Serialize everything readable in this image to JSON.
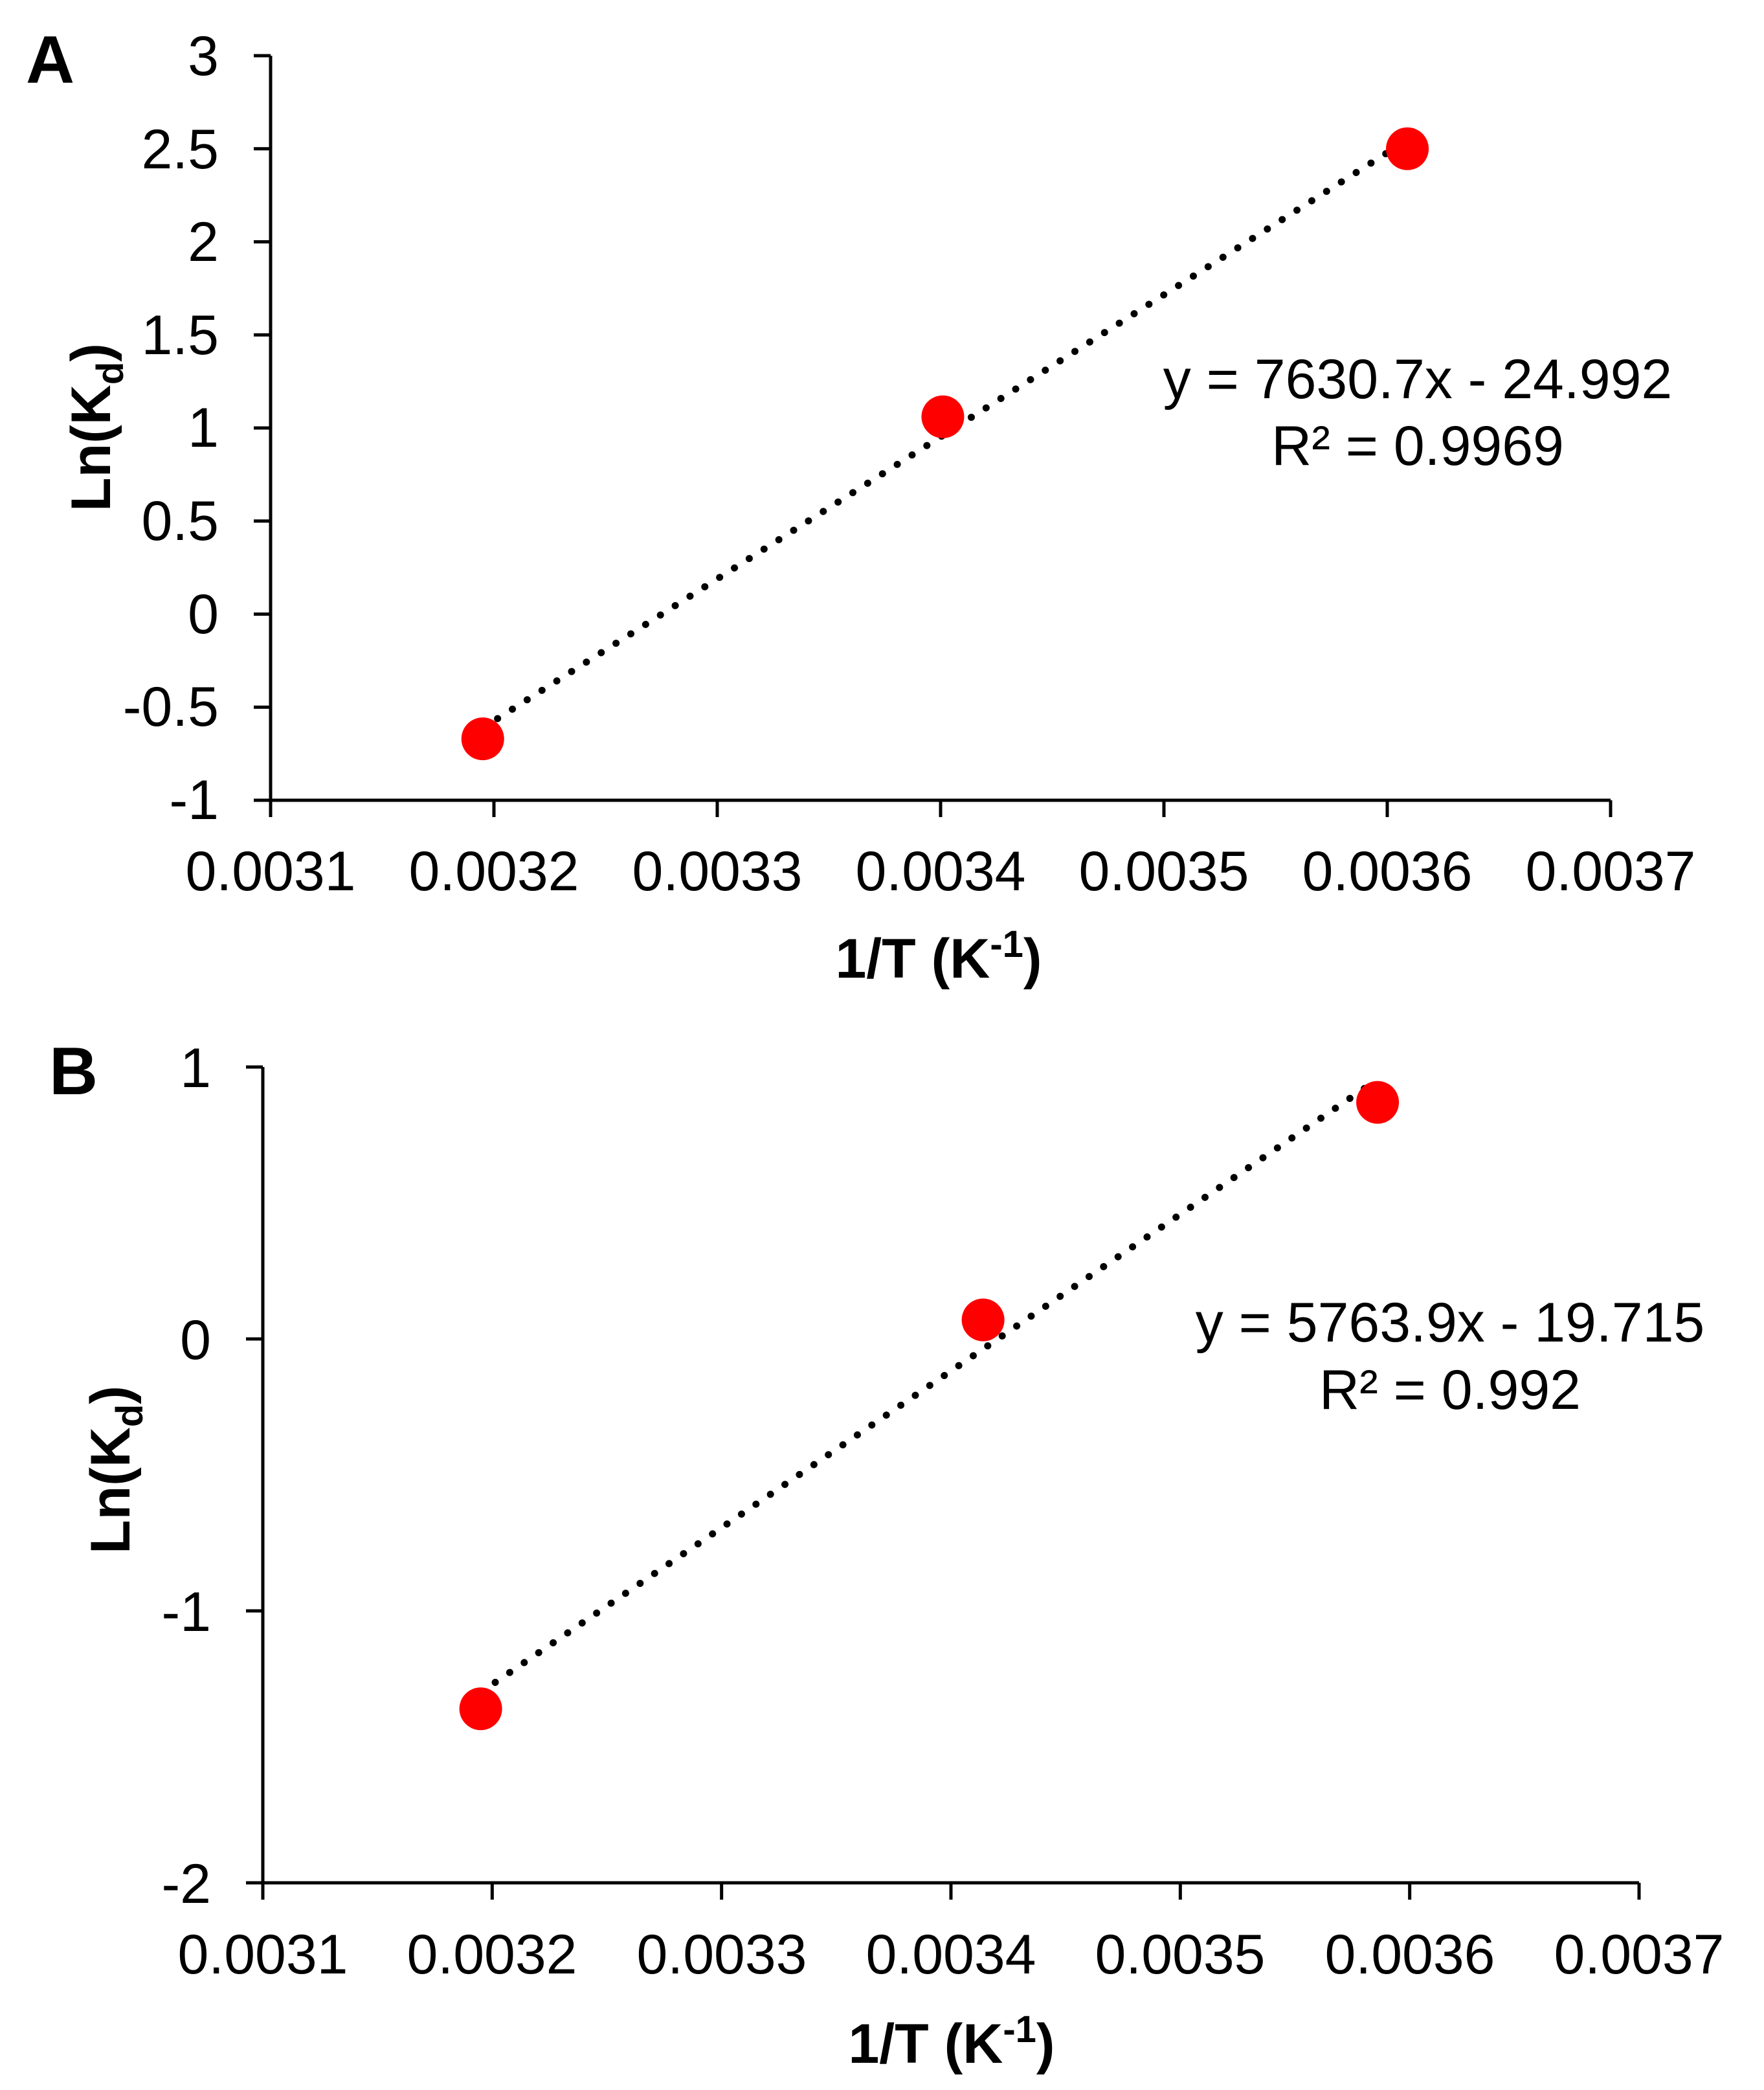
{
  "colors": {
    "marker": "#ff0000",
    "axis": "#000000",
    "trendline": "#000000",
    "background": "#ffffff"
  },
  "chart_data": [
    {
      "panel": "A",
      "type": "scatter",
      "xlabel_main": "1/T (K",
      "xlabel_sup": "-1",
      "xlabel_tail": ")",
      "ylabel_main": "Ln(K",
      "ylabel_sub": "d",
      "ylabel_tail": ")",
      "xlim": [
        0.0031,
        0.0037
      ],
      "ylim": [
        -1,
        3
      ],
      "xticks": [
        0.0031,
        0.0032,
        0.0033,
        0.0034,
        0.0035,
        0.0036,
        0.0037
      ],
      "xtick_labels": [
        "0.0031",
        "0.0032",
        "0.0033",
        "0.0034",
        "0.0035",
        "0.0036",
        "0.0037"
      ],
      "yticks": [
        -1,
        -0.5,
        0,
        0.5,
        1,
        1.5,
        2,
        2.5,
        3
      ],
      "ytick_labels": [
        "-1",
        "-0.5",
        "0",
        "0.5",
        "1",
        "1.5",
        "2",
        "2.5",
        "3"
      ],
      "points": [
        {
          "x": 0.003195,
          "y": -0.67
        },
        {
          "x": 0.003401,
          "y": 1.06
        },
        {
          "x": 0.003609,
          "y": 2.5
        }
      ],
      "trendline": {
        "slope": 7630.7,
        "intercept": -24.992,
        "x_from": 0.003195,
        "x_to": 0.003609
      },
      "equation": "y = 7630.7x - 24.992",
      "r_squared": "R² = 0.9969"
    },
    {
      "panel": "B",
      "type": "scatter",
      "xlabel_main": "1/T (K",
      "xlabel_sup": "-1",
      "xlabel_tail": ")",
      "ylabel_main": "Ln(K",
      "ylabel_sub": "d",
      "ylabel_tail": ")",
      "xlim": [
        0.0031,
        0.0037
      ],
      "ylim": [
        -2,
        1
      ],
      "xticks": [
        0.0031,
        0.0032,
        0.0033,
        0.0034,
        0.0035,
        0.0036,
        0.0037
      ],
      "xtick_labels": [
        "0.0031",
        "0.0032",
        "0.0033",
        "0.0034",
        "0.0035",
        "0.0036",
        "0.0037"
      ],
      "yticks": [
        -2,
        -1,
        0,
        1
      ],
      "ytick_labels": [
        "-2",
        "-1",
        "0",
        "1"
      ],
      "points": [
        {
          "x": 0.003195,
          "y": -1.36
        },
        {
          "x": 0.003414,
          "y": 0.07
        },
        {
          "x": 0.003586,
          "y": 0.87
        }
      ],
      "trendline": {
        "slope": 5763.9,
        "intercept": -19.715,
        "x_from": 0.003195,
        "x_to": 0.003586
      },
      "equation": "y = 5763.9x - 19.715",
      "r_squared": "R² = 0.992"
    }
  ]
}
